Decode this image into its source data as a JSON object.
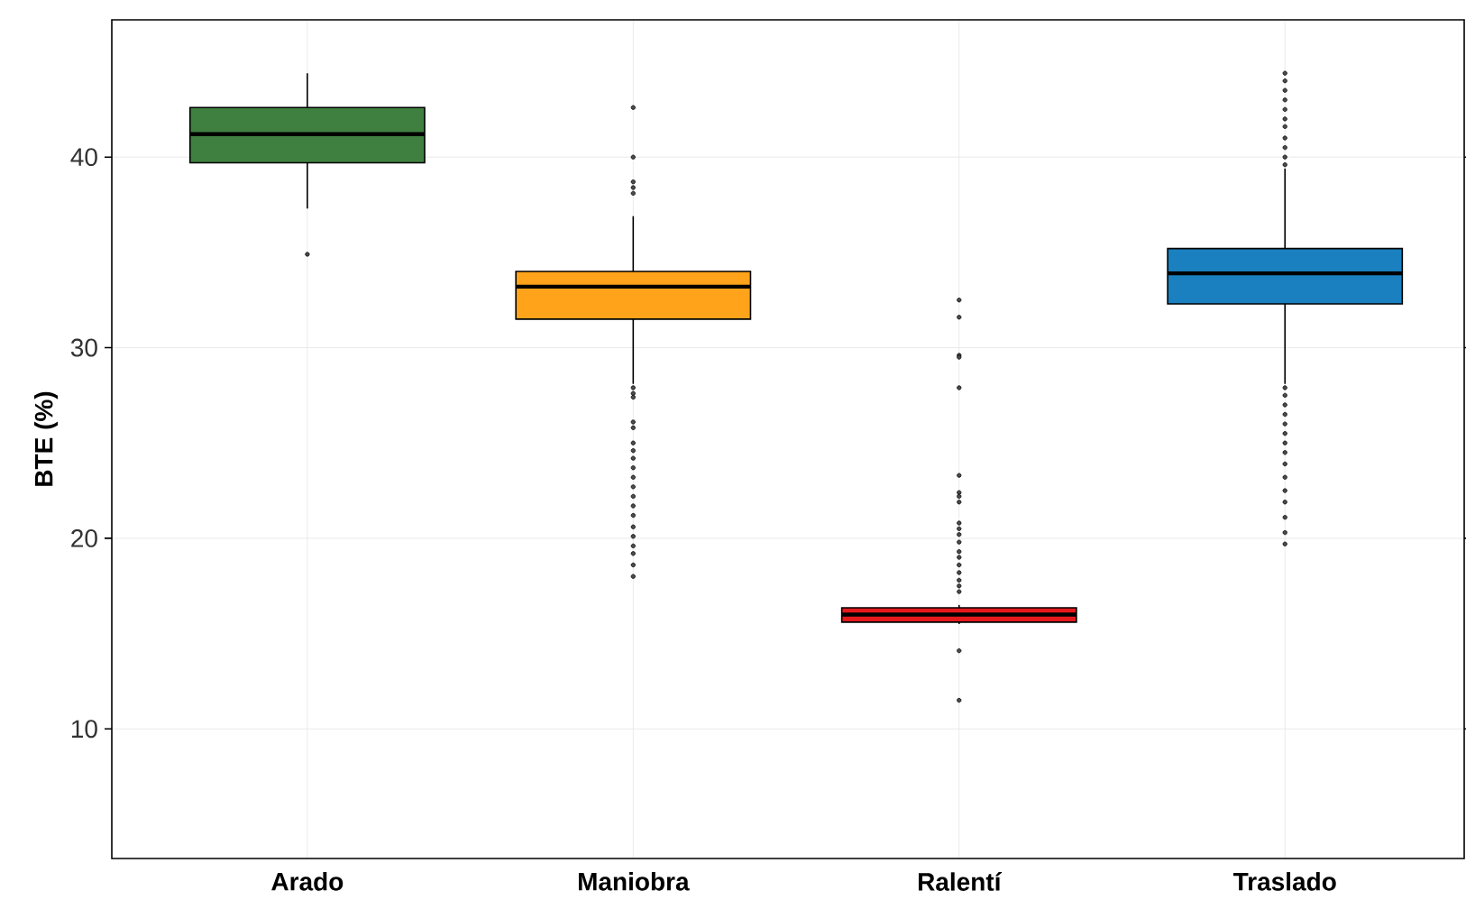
{
  "chart_data": {
    "type": "box",
    "ylabel": "BTE (%)",
    "categories": [
      "Arado",
      "Maniobra",
      "Ralentí",
      "Traslado"
    ],
    "colors": [
      "#3f8040",
      "#ffa31a",
      "#e41a1c",
      "#1a80c0"
    ],
    "boxes": [
      {
        "low": 37.3,
        "q1": 39.7,
        "median": 41.2,
        "q3": 42.6,
        "high": 44.4,
        "outliers": [
          34.9
        ]
      },
      {
        "low": 28.1,
        "q1": 31.5,
        "median": 33.2,
        "q3": 34.0,
        "high": 36.9,
        "outliers": [
          42.6,
          40.0,
          38.7,
          38.4,
          38.1,
          27.9,
          27.6,
          27.4,
          26.1,
          25.8,
          25.0,
          24.6,
          24.2,
          23.7,
          23.2,
          22.7,
          22.2,
          21.7,
          21.2,
          20.6,
          20.1,
          19.6,
          19.2,
          18.6,
          18.0
        ]
      },
      {
        "low": 15.5,
        "q1": 15.6,
        "median": 16.0,
        "q3": 16.35,
        "high": 16.5,
        "outliers": [
          32.5,
          31.6,
          29.6,
          29.5,
          27.9,
          23.3,
          22.4,
          22.2,
          21.9,
          20.8,
          20.5,
          20.2,
          19.8,
          19.3,
          19.0,
          18.6,
          18.2,
          17.8,
          17.5,
          17.2,
          14.1,
          11.5
        ]
      },
      {
        "low": 28.1,
        "q1": 32.3,
        "median": 33.9,
        "q3": 35.2,
        "high": 39.4,
        "outliers": [
          44.4,
          44.0,
          43.5,
          43.0,
          42.5,
          42.0,
          41.6,
          41.0,
          40.5,
          40.0,
          39.6,
          27.9,
          27.5,
          27.0,
          26.5,
          26.0,
          25.5,
          25.0,
          24.5,
          23.9,
          23.2,
          22.5,
          21.9,
          21.1,
          20.3,
          19.7
        ]
      }
    ],
    "ylim": [
      3.2,
      47.2
    ],
    "yticks": [
      10,
      20,
      30,
      40
    ],
    "grid": true
  }
}
